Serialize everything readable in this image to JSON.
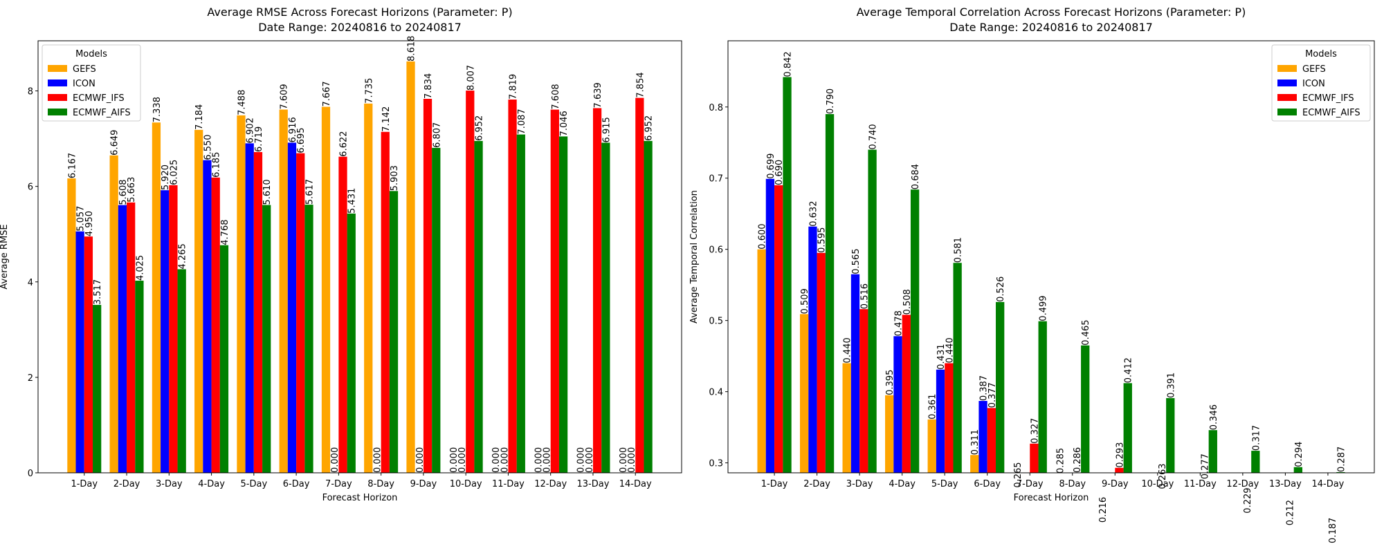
{
  "chart_data": [
    {
      "type": "bar",
      "title": "Average RMSE Across Forecast Horizons (Parameter: P)",
      "subtitle": "Date Range: 20240816 to 20240817",
      "xlabel": "Forecast Horizon",
      "ylabel": "Average RMSE",
      "categories": [
        "1-Day",
        "2-Day",
        "3-Day",
        "4-Day",
        "5-Day",
        "6-Day",
        "7-Day",
        "8-Day",
        "9-Day",
        "10-Day",
        "11-Day",
        "12-Day",
        "13-Day",
        "14-Day"
      ],
      "series": [
        {
          "name": "GEFS",
          "color": "#ffa500",
          "values": [
            6.167,
            6.649,
            7.338,
            7.184,
            7.488,
            7.609,
            7.667,
            7.735,
            8.618,
            0,
            0,
            0,
            0,
            0
          ],
          "value_labels": [
            "6.167",
            "6.649",
            "7.338",
            "7.184",
            "7.488",
            "7.609",
            "7.667",
            "7.735",
            "8.618",
            "0.000",
            "0.000",
            "0.000",
            "0.000",
            "0.000"
          ]
        },
        {
          "name": "ICON",
          "color": "#0000ff",
          "values": [
            5.057,
            5.608,
            5.92,
            6.55,
            6.902,
            6.916,
            0,
            0,
            0,
            0,
            0,
            0,
            0,
            0
          ],
          "value_labels": [
            "5.057",
            "5.608",
            "5.920",
            "6.550",
            "6.902",
            "6.916",
            "0.000",
            "0.000",
            "0.000",
            "0.000",
            "0.000",
            "0.000",
            "0.000",
            "0.000"
          ]
        },
        {
          "name": "ECMWF_IFS",
          "color": "#ff0000",
          "values": [
            4.95,
            5.663,
            6.025,
            6.185,
            6.719,
            6.695,
            6.622,
            7.142,
            7.834,
            8.007,
            7.819,
            7.608,
            7.639,
            7.854
          ],
          "value_labels": [
            "4.950",
            "5.663",
            "6.025",
            "6.185",
            "6.719",
            "6.695",
            "6.622",
            "7.142",
            "7.834",
            "8.007",
            "7.819",
            "7.608",
            "7.639",
            "7.854"
          ]
        },
        {
          "name": "ECMWF_AIFS",
          "color": "#008000",
          "values": [
            3.517,
            4.025,
            4.265,
            4.768,
            5.61,
            5.617,
            5.431,
            5.903,
            6.807,
            6.952,
            7.087,
            7.046,
            6.915,
            6.952
          ],
          "value_labels": [
            "3.517",
            "4.025",
            "4.265",
            "4.768",
            "5.610",
            "5.617",
            "5.431",
            "5.903",
            "6.807",
            "6.952",
            "7.087",
            "7.046",
            "6.915",
            "6.952"
          ]
        }
      ],
      "ylim": [
        0,
        9.05
      ],
      "yticks": [
        0,
        2,
        4,
        6,
        8
      ],
      "legend_title": "Models",
      "legend_loc": "upper left"
    },
    {
      "type": "bar",
      "title": "Average Temporal Correlation Across Forecast Horizons (Parameter: P)",
      "subtitle": "Date Range: 20240816 to 20240817",
      "xlabel": "Forecast Horizon",
      "ylabel": "Average Temporal Correlation",
      "categories": [
        "1-Day",
        "2-Day",
        "3-Day",
        "4-Day",
        "5-Day",
        "6-Day",
        "7-Day",
        "8-Day",
        "9-Day",
        "10-Day",
        "11-Day",
        "12-Day",
        "13-Day",
        "14-Day"
      ],
      "series": [
        {
          "name": "GEFS",
          "color": "#ffa500",
          "values": [
            0.6,
            0.509,
            0.44,
            0.395,
            0.361,
            0.311,
            0.265,
            0.285,
            0.216,
            null,
            null,
            null,
            null,
            null
          ],
          "value_labels": [
            "0.600",
            "0.509",
            "0.440",
            "0.395",
            "0.361",
            "0.311",
            "0.265",
            "0.285",
            "0.216",
            null,
            null,
            null,
            null,
            null
          ]
        },
        {
          "name": "ICON",
          "color": "#0000ff",
          "values": [
            0.699,
            0.632,
            0.565,
            0.478,
            0.431,
            0.387,
            null,
            null,
            null,
            null,
            null,
            null,
            null,
            null
          ],
          "value_labels": [
            "0.699",
            "0.632",
            "0.565",
            "0.478",
            "0.431",
            "0.387",
            null,
            null,
            null,
            null,
            null,
            null,
            null,
            null
          ]
        },
        {
          "name": "ECMWF_IFS",
          "color": "#ff0000",
          "values": [
            0.69,
            0.595,
            0.516,
            0.508,
            0.44,
            0.377,
            0.327,
            0.286,
            0.293,
            0.263,
            0.277,
            0.229,
            0.212,
            0.187
          ],
          "value_labels": [
            "0.690",
            "0.595",
            "0.516",
            "0.508",
            "0.440",
            "0.377",
            "0.327",
            "0.286",
            "0.293",
            "0.263",
            "0.277",
            "0.229",
            "0.212",
            "0.187"
          ]
        },
        {
          "name": "ECMWF_AIFS",
          "color": "#008000",
          "values": [
            0.842,
            0.79,
            0.74,
            0.684,
            0.581,
            0.526,
            0.499,
            0.465,
            0.412,
            0.391,
            0.346,
            0.317,
            0.294,
            0.287
          ],
          "value_labels": [
            "0.842",
            "0.790",
            "0.740",
            "0.684",
            "0.581",
            "0.526",
            "0.499",
            "0.465",
            "0.412",
            "0.391",
            "0.346",
            "0.317",
            "0.294",
            "0.287"
          ]
        }
      ],
      "ylim": [
        0.286,
        0.893
      ],
      "yticks": [
        0.3,
        0.4,
        0.5,
        0.6,
        0.7,
        0.8
      ],
      "legend_title": "Models",
      "legend_loc": "upper right"
    }
  ]
}
